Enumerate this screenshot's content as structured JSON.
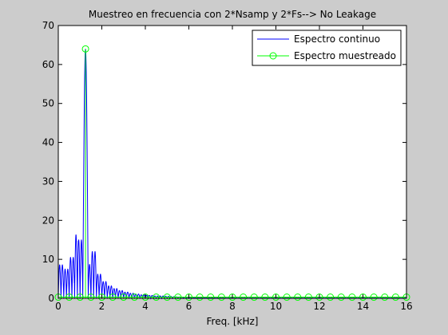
{
  "chart_data": {
    "type": "line",
    "title": "Muestreo en frecuencia con 2*Nsamp y 2*Fs--> No Leakage",
    "xlabel": "Freq. [kHz]",
    "ylabel": "",
    "xlim": [
      0,
      16
    ],
    "ylim": [
      0,
      70
    ],
    "xticks": [
      0,
      2,
      4,
      6,
      8,
      10,
      12,
      14,
      16
    ],
    "yticks": [
      0,
      10,
      20,
      30,
      40,
      50,
      60,
      70
    ],
    "grid": false,
    "legend_position": "top-right",
    "series": [
      {
        "name": "Espectro continuo",
        "color": "#0000ff",
        "style": "line",
        "peak_frequency_khz": 1.25,
        "peak_value": 64,
        "sidelobe_spacing_khz": 0.125,
        "sidelobe_peaks": [
          [
            0.14,
            8.6
          ],
          [
            0.37,
            7.5
          ],
          [
            0.62,
            10.5
          ],
          [
            0.85,
            16.3
          ],
          [
            1.0,
            15.0
          ],
          [
            1.4,
            8.7
          ],
          [
            1.62,
            12.0
          ],
          [
            1.87,
            6.2
          ],
          [
            2.12,
            4.3
          ],
          [
            2.37,
            3.2
          ],
          [
            2.62,
            2.5
          ],
          [
            2.87,
            2.0
          ],
          [
            3.12,
            1.6
          ],
          [
            3.37,
            1.3
          ],
          [
            3.62,
            1.1
          ],
          [
            3.87,
            0.9
          ],
          [
            4.2,
            0.75
          ],
          [
            4.6,
            0.6
          ]
        ]
      },
      {
        "name": "Espectro muestreado",
        "color": "#00ff00",
        "style": "stem",
        "marker": "circle",
        "x": [
          0,
          0.5,
          1.0,
          1.25,
          1.5,
          2.0,
          2.5,
          3.0,
          3.5,
          4.0,
          4.5,
          5.0,
          5.5,
          6.0,
          6.5,
          7.0,
          7.5,
          8.0,
          8.5,
          9.0,
          9.5,
          10.0,
          10.5,
          11.0,
          11.5,
          12.0,
          12.5,
          13.0,
          13.5,
          14.0,
          14.5,
          15.0,
          15.5,
          16.0
        ],
        "y": [
          0.3,
          0.3,
          0.3,
          64,
          0.3,
          0.3,
          0.3,
          0.3,
          0.3,
          0.3,
          0.3,
          0.3,
          0.3,
          0.3,
          0.3,
          0.3,
          0.3,
          0.3,
          0.3,
          0.3,
          0.3,
          0.3,
          0.3,
          0.3,
          0.3,
          0.3,
          0.3,
          0.3,
          0.3,
          0.3,
          0.3,
          0.3,
          0.3,
          0.3
        ]
      }
    ]
  }
}
